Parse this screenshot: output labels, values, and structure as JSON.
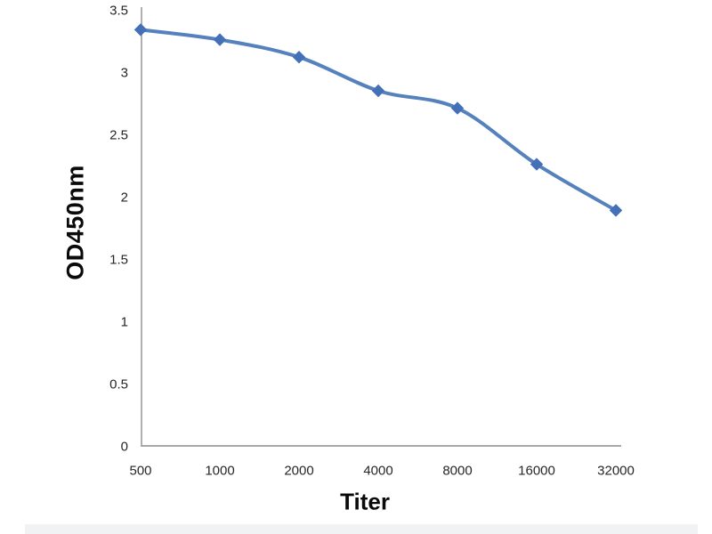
{
  "chart_data": {
    "type": "line",
    "title": "",
    "xlabel": "Titer",
    "ylabel": "OD450nm",
    "categories": [
      "500",
      "1000",
      "2000",
      "4000",
      "8000",
      "16000",
      "32000"
    ],
    "series": [
      {
        "name": "OD450nm",
        "values": [
          3.34,
          3.26,
          3.12,
          2.85,
          2.71,
          2.26,
          1.89
        ]
      }
    ],
    "ylim": [
      0,
      3.5
    ],
    "ytick_step": 0.5,
    "yticks": [
      "0",
      "0.5",
      "1",
      "1.5",
      "2",
      "2.5",
      "3",
      "3.5"
    ],
    "grid": false,
    "legend_position": "none",
    "marker_shape": "diamond",
    "line_smoothing": true,
    "colors": {
      "line": "#5581BD",
      "marker": "#4470B8",
      "axis": "#9B9B9B",
      "tick_label": "#262626",
      "axis_title": "#0A0A0A",
      "background": "#FFFFFF",
      "photo_edge": "#F1F2F4"
    }
  }
}
